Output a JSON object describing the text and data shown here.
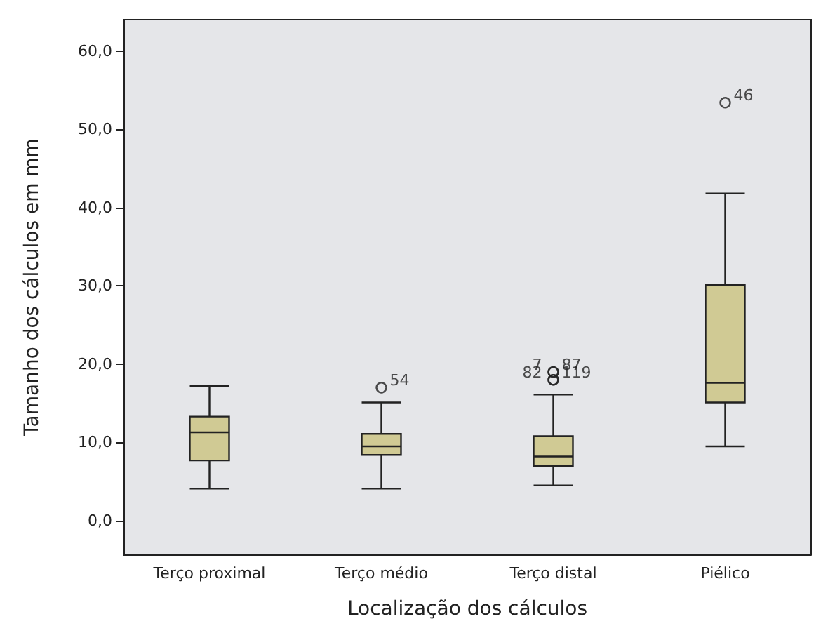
{
  "chart_data": {
    "type": "box",
    "xlabel": "Localização dos cálculos",
    "ylabel": "Tamanho dos cálculos em mm",
    "categories": [
      "Terço proximal",
      "Terço médio",
      "Terço distal",
      "Piélico"
    ],
    "color": "#d0ca94",
    "boxes": [
      {
        "low": 4.1,
        "q1": 7.7,
        "median": 11.3,
        "q3": 13.3,
        "high": 17.2
      },
      {
        "low": 4.1,
        "q1": 8.4,
        "median": 9.5,
        "q3": 11.1,
        "high": 15.1,
        "outliers": [
          17.0
        ]
      },
      {
        "low": 4.5,
        "q1": 7.0,
        "median": 8.2,
        "q3": 10.8,
        "high": 16.1,
        "outliers": [
          18.0,
          18.0,
          19.0,
          19.0
        ]
      },
      {
        "low": 9.5,
        "q1": 15.1,
        "median": 17.6,
        "q3": 30.1,
        "high": 41.8,
        "outliers": [
          53.4
        ]
      }
    ],
    "ylim": [
      -4.3,
      64
    ],
    "yticks": [
      {
        "value": 0,
        "label": "0,0"
      },
      {
        "value": 10,
        "label": "10,0"
      },
      {
        "value": 20,
        "label": "20,0"
      },
      {
        "value": 30,
        "label": "30,0"
      },
      {
        "value": 40,
        "label": "40,0"
      },
      {
        "value": 50,
        "label": "50,0"
      },
      {
        "value": 60,
        "label": "60,0"
      }
    ],
    "annotations": [
      "54",
      "82",
      "119",
      "7",
      "87",
      "46"
    ],
    "grid": false
  }
}
